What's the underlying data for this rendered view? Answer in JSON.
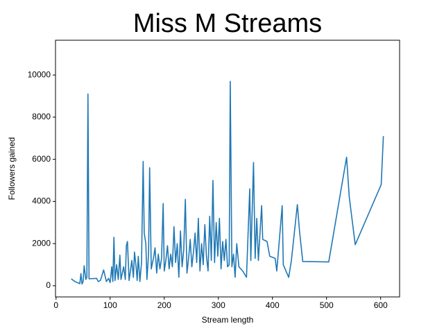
{
  "chart_data": {
    "type": "line",
    "title": "Miss M Streams",
    "x_label": "Stream length",
    "y_label": "Followers gained",
    "series": [
      {
        "name": "Followers gained",
        "color": "#1f77b4",
        "x": [
          28,
          35,
          44,
          46,
          48,
          50,
          52,
          55,
          57,
          59,
          61,
          75,
          78,
          82,
          88,
          93,
          97,
          100,
          103,
          105,
          107,
          109,
          112,
          115,
          118,
          120,
          125,
          128,
          130,
          132,
          135,
          138,
          140,
          143,
          145,
          148,
          150,
          152,
          155,
          158,
          161,
          163,
          166,
          168,
          171,
          173,
          176,
          180,
          183,
          186,
          189,
          192,
          195,
          198,
          200,
          203,
          206,
          209,
          212,
          215,
          218,
          221,
          224,
          227,
          230,
          233,
          236,
          239,
          242,
          245,
          248,
          251,
          254,
          257,
          260,
          263,
          266,
          269,
          272,
          275,
          278,
          281,
          284,
          287,
          290,
          293,
          296,
          299,
          302,
          305,
          308,
          311,
          314,
          317,
          320,
          322,
          325,
          328,
          331,
          334,
          338,
          345,
          352,
          358,
          360,
          365,
          368,
          371,
          374,
          380,
          382,
          390,
          395,
          405,
          408,
          418,
          420,
          430,
          435,
          446,
          450,
          456,
          504,
          537,
          542,
          553,
          601,
          605
        ],
        "values": [
          330,
          200,
          100,
          580,
          80,
          200,
          950,
          300,
          400,
          9100,
          330,
          350,
          200,
          250,
          750,
          200,
          350,
          150,
          900,
          200,
          2300,
          250,
          1000,
          300,
          1450,
          300,
          900,
          300,
          1900,
          2100,
          250,
          800,
          1200,
          400,
          1600,
          900,
          250,
          1400,
          200,
          1100,
          5900,
          2500,
          2000,
          300,
          1500,
          5600,
          800,
          1300,
          1800,
          600,
          1500,
          800,
          1300,
          3900,
          700,
          1200,
          1900,
          800,
          1500,
          900,
          2800,
          1100,
          2000,
          400,
          2600,
          900,
          1700,
          4100,
          600,
          1300,
          2200,
          900,
          1600,
          2500,
          1100,
          3200,
          700,
          2000,
          1000,
          2900,
          1400,
          700,
          3300,
          1200,
          5000,
          1100,
          3000,
          1400,
          3200,
          800,
          2100,
          1200,
          2200,
          900,
          1000,
          9700,
          900,
          1500,
          400,
          2000,
          900,
          700,
          400,
          4600,
          1200,
          5850,
          1300,
          3200,
          1200,
          3800,
          2200,
          2100,
          1400,
          1300,
          700,
          3800,
          1000,
          400,
          1200,
          3850,
          2600,
          1150,
          1130,
          6100,
          4200,
          1950,
          4800,
          7100
        ]
      }
    ],
    "xlim": [
      -1,
      635
    ],
    "ylim": [
      -530,
      11650
    ],
    "xticks": [
      0,
      100,
      200,
      300,
      400,
      500,
      600
    ],
    "yticks": [
      0,
      2000,
      4000,
      6000,
      8000,
      10000
    ]
  }
}
